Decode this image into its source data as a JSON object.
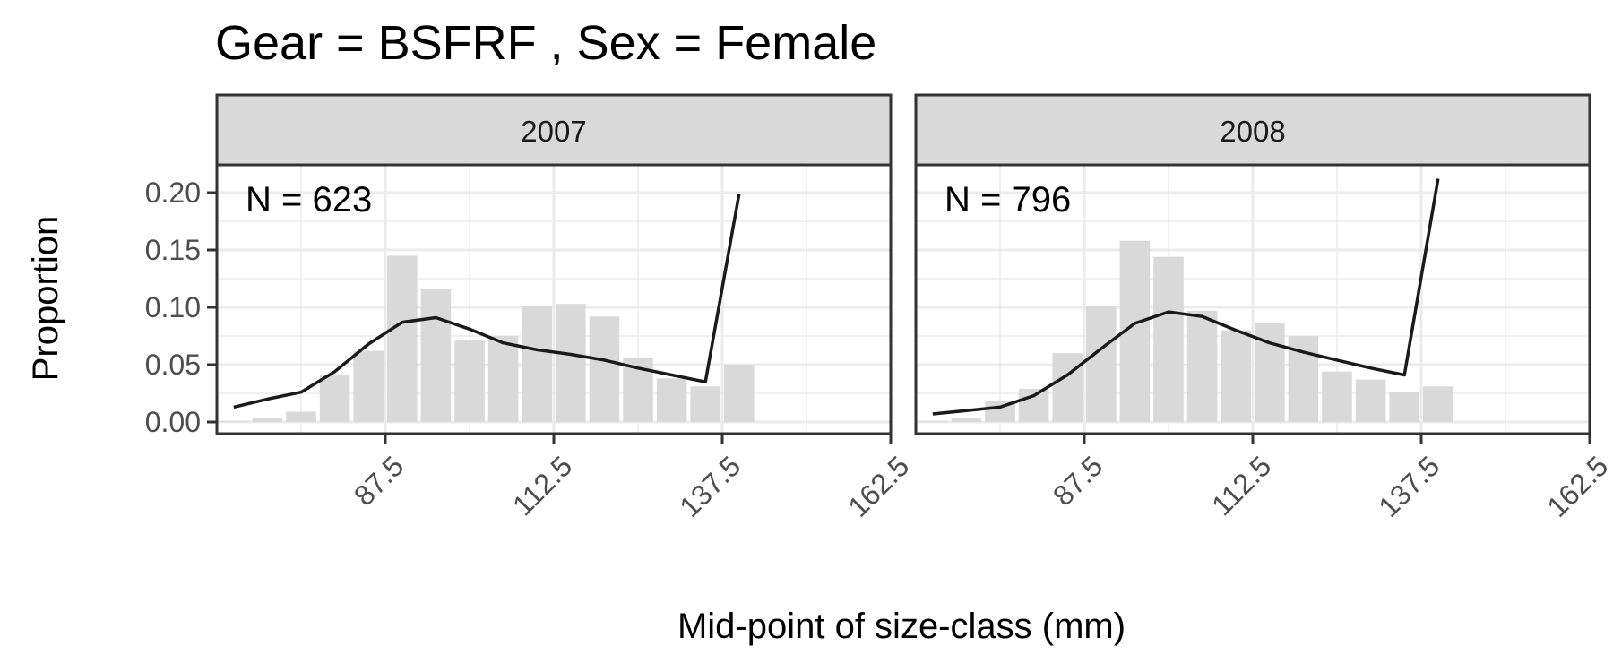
{
  "chart_data": {
    "type": "bar",
    "title": "Gear = BSFRF , Sex = Female",
    "xlabel": "Mid-point of size-class (mm)",
    "ylabel": "Proportion",
    "xlim": [
      62.5,
      162.5
    ],
    "ylim": [
      0,
      0.2
    ],
    "xticks": [
      "87.5",
      "112.5",
      "137.5",
      "162.5"
    ],
    "yticks": [
      "0.00",
      "0.05",
      "0.10",
      "0.15",
      "0.20"
    ],
    "bin_width": 5,
    "grid": true,
    "colors": {
      "bars": "#d9d9d9",
      "line": "#1a1a1a",
      "strip": "#d9d9d9",
      "grid": "#ebebeb",
      "frame": "#333333"
    },
    "panels": [
      {
        "strip_label": "2007",
        "n_label": "N = 623",
        "observed": {
          "x": [
            65,
            70,
            75,
            80,
            85,
            90,
            95,
            100,
            105,
            110,
            115,
            120,
            125,
            130,
            135,
            140
          ],
          "values": [
            0.001,
            0.003,
            0.009,
            0.041,
            0.062,
            0.145,
            0.116,
            0.071,
            0.075,
            0.101,
            0.103,
            0.092,
            0.056,
            0.038,
            0.031,
            0.05
          ]
        },
        "expected": {
          "x": [
            65,
            70,
            75,
            80,
            85,
            90,
            95,
            100,
            105,
            110,
            115,
            120,
            125,
            130,
            135,
            140
          ],
          "values": [
            0.013,
            0.02,
            0.026,
            0.044,
            0.068,
            0.087,
            0.091,
            0.081,
            0.069,
            0.063,
            0.059,
            0.054,
            0.047,
            0.041,
            0.035,
            0.199
          ]
        }
      },
      {
        "strip_label": "2008",
        "n_label": "N = 796",
        "observed": {
          "x": [
            65,
            70,
            75,
            80,
            85,
            90,
            95,
            100,
            105,
            110,
            115,
            120,
            125,
            130,
            135,
            140
          ],
          "values": [
            0.001,
            0.003,
            0.018,
            0.029,
            0.06,
            0.101,
            0.158,
            0.144,
            0.097,
            0.08,
            0.086,
            0.075,
            0.044,
            0.037,
            0.026,
            0.031
          ]
        },
        "expected": {
          "x": [
            65,
            70,
            75,
            80,
            85,
            90,
            95,
            100,
            105,
            110,
            115,
            120,
            125,
            130,
            135,
            140
          ],
          "values": [
            0.007,
            0.01,
            0.013,
            0.023,
            0.041,
            0.064,
            0.086,
            0.096,
            0.092,
            0.08,
            0.069,
            0.061,
            0.054,
            0.047,
            0.041,
            0.212
          ]
        }
      }
    ]
  }
}
